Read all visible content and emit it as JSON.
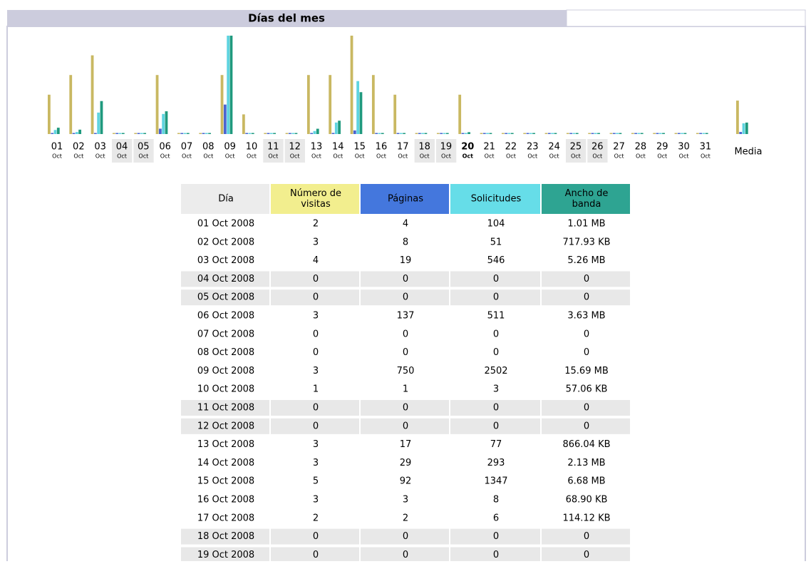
{
  "section_title": "Días del mes",
  "chart": {
    "colors": {
      "visits": "#c9b862",
      "pages": "#4a64d0",
      "hits": "#5fd4e0",
      "bandwidth": "#1f9a7e"
    },
    "today": "20",
    "days": [
      {
        "day": "01",
        "month": "Oct"
      },
      {
        "day": "02",
        "month": "Oct"
      },
      {
        "day": "03",
        "month": "Oct"
      },
      {
        "day": "04",
        "month": "Oct",
        "weekend": true
      },
      {
        "day": "05",
        "month": "Oct",
        "weekend": true
      },
      {
        "day": "06",
        "month": "Oct"
      },
      {
        "day": "07",
        "month": "Oct"
      },
      {
        "day": "08",
        "month": "Oct"
      },
      {
        "day": "09",
        "month": "Oct"
      },
      {
        "day": "10",
        "month": "Oct"
      },
      {
        "day": "11",
        "month": "Oct",
        "weekend": true
      },
      {
        "day": "12",
        "month": "Oct",
        "weekend": true
      },
      {
        "day": "13",
        "month": "Oct"
      },
      {
        "day": "14",
        "month": "Oct"
      },
      {
        "day": "15",
        "month": "Oct"
      },
      {
        "day": "16",
        "month": "Oct"
      },
      {
        "day": "17",
        "month": "Oct"
      },
      {
        "day": "18",
        "month": "Oct",
        "weekend": true
      },
      {
        "day": "19",
        "month": "Oct",
        "weekend": true
      },
      {
        "day": "20",
        "month": "Oct"
      },
      {
        "day": "21",
        "month": "Oct"
      },
      {
        "day": "22",
        "month": "Oct"
      },
      {
        "day": "23",
        "month": "Oct"
      },
      {
        "day": "24",
        "month": "Oct"
      },
      {
        "day": "25",
        "month": "Oct",
        "weekend": true
      },
      {
        "day": "26",
        "month": "Oct",
        "weekend": true
      },
      {
        "day": "27",
        "month": "Oct"
      },
      {
        "day": "28",
        "month": "Oct"
      },
      {
        "day": "29",
        "month": "Oct"
      },
      {
        "day": "30",
        "month": "Oct"
      },
      {
        "day": "31",
        "month": "Oct"
      }
    ],
    "visits": [
      2,
      3,
      4,
      0,
      0,
      3,
      0,
      0,
      3,
      1,
      0,
      0,
      3,
      3,
      5,
      3,
      2,
      0,
      0,
      2,
      0,
      0,
      0,
      0,
      0,
      0,
      0,
      0,
      0,
      0,
      0
    ],
    "pages": [
      4,
      8,
      19,
      0,
      0,
      137,
      0,
      0,
      750,
      1,
      0,
      0,
      17,
      29,
      92,
      3,
      2,
      0,
      0,
      2,
      0,
      0,
      0,
      0,
      0,
      0,
      0,
      0,
      0,
      0,
      0
    ],
    "hits": [
      104,
      51,
      546,
      0,
      0,
      511,
      0,
      0,
      2502,
      3,
      0,
      0,
      77,
      293,
      1347,
      8,
      6,
      0,
      0,
      20,
      0,
      0,
      0,
      0,
      0,
      0,
      0,
      0,
      0,
      0,
      0
    ],
    "bandwidth": [
      1.01,
      0.7,
      5.26,
      0,
      0,
      3.63,
      0,
      0,
      15.69,
      0.056,
      0,
      0,
      0.846,
      2.13,
      6.68,
      0.067,
      0.111,
      0,
      0,
      0.3,
      0,
      0,
      0,
      0,
      0,
      0,
      0,
      0,
      0,
      0,
      0
    ],
    "average": {
      "label": "Media",
      "visits": 1.7,
      "pages": 53.2,
      "hits": 273.4,
      "bandwidth": 1.83
    }
  },
  "table": {
    "headers": [
      "Día",
      "Número de visitas",
      "Páginas",
      "Solicitudes",
      "Ancho de banda"
    ],
    "weekend_rows": [
      3,
      4,
      10,
      11,
      17,
      18
    ],
    "rows": [
      [
        "01 Oct 2008",
        "2",
        "4",
        "104",
        "1.01 MB"
      ],
      [
        "02 Oct 2008",
        "3",
        "8",
        "51",
        "717.93 KB"
      ],
      [
        "03 Oct 2008",
        "4",
        "19",
        "546",
        "5.26 MB"
      ],
      [
        "04 Oct 2008",
        "0",
        "0",
        "0",
        "0"
      ],
      [
        "05 Oct 2008",
        "0",
        "0",
        "0",
        "0"
      ],
      [
        "06 Oct 2008",
        "3",
        "137",
        "511",
        "3.63 MB"
      ],
      [
        "07 Oct 2008",
        "0",
        "0",
        "0",
        "0"
      ],
      [
        "08 Oct 2008",
        "0",
        "0",
        "0",
        "0"
      ],
      [
        "09 Oct 2008",
        "3",
        "750",
        "2502",
        "15.69 MB"
      ],
      [
        "10 Oct 2008",
        "1",
        "1",
        "3",
        "57.06 KB"
      ],
      [
        "11 Oct 2008",
        "0",
        "0",
        "0",
        "0"
      ],
      [
        "12 Oct 2008",
        "0",
        "0",
        "0",
        "0"
      ],
      [
        "13 Oct 2008",
        "3",
        "17",
        "77",
        "866.04 KB"
      ],
      [
        "14 Oct 2008",
        "3",
        "29",
        "293",
        "2.13 MB"
      ],
      [
        "15 Oct 2008",
        "5",
        "92",
        "1347",
        "6.68 MB"
      ],
      [
        "16 Oct 2008",
        "3",
        "3",
        "8",
        "68.90 KB"
      ],
      [
        "17 Oct 2008",
        "2",
        "2",
        "6",
        "114.12 KB"
      ],
      [
        "18 Oct 2008",
        "0",
        "0",
        "0",
        "0"
      ],
      [
        "19 Oct 2008",
        "0",
        "0",
        "0",
        "0"
      ]
    ]
  }
}
